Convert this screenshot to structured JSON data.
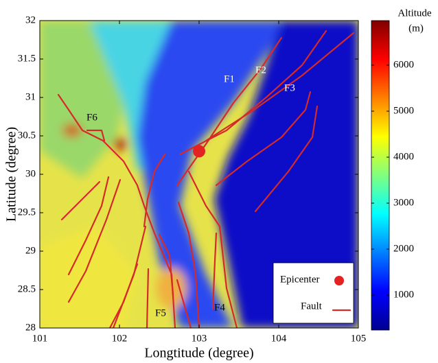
{
  "chart_data": {
    "type": "map",
    "xlabel": "Longtitude (degree)",
    "ylabel": "Latitude (degree)",
    "xlim": [
      101,
      105
    ],
    "ylim": [
      28,
      32
    ],
    "xticks": [
      101,
      102,
      103,
      104,
      105
    ],
    "yticks": [
      28,
      28.5,
      29,
      29.5,
      30,
      30.5,
      31,
      31.5,
      32
    ],
    "colorbar": {
      "label": "Altitude",
      "unit": "(m)",
      "clim": [
        240,
        6970
      ],
      "ticks": [
        1000,
        2000,
        3000,
        4000,
        5000,
        6000
      ]
    },
    "epicenter": {
      "x": 103.0,
      "y": 30.3,
      "color": "#e32222"
    },
    "fault_color": "#d42a2a",
    "fault_labels": [
      "F1",
      "F2",
      "F3",
      "F4",
      "F5",
      "F6"
    ],
    "legend": [
      {
        "name": "Epicenter"
      },
      {
        "name": "Fault"
      }
    ]
  }
}
